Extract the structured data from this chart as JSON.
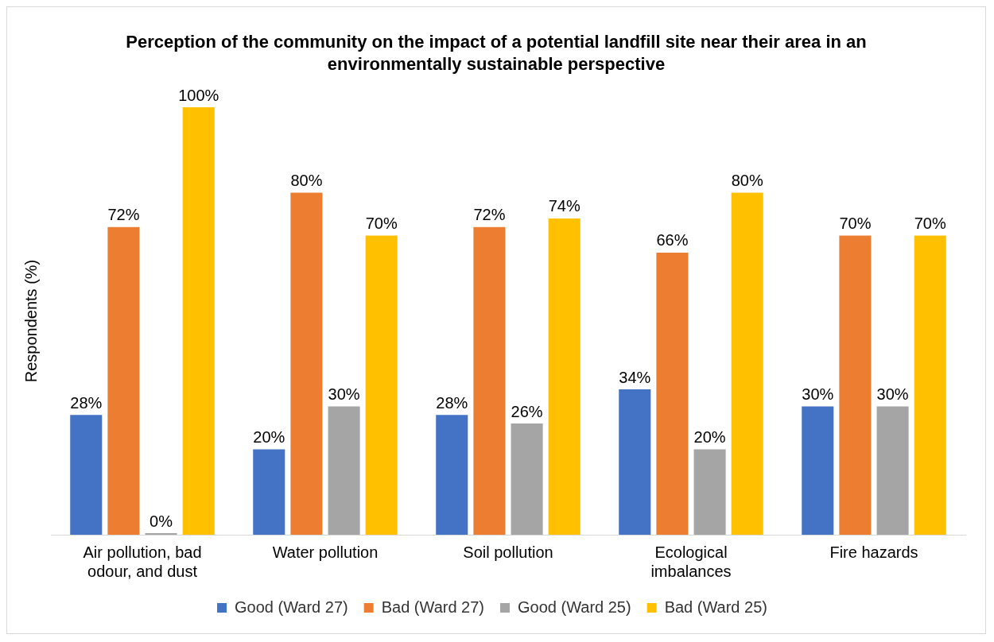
{
  "chart_data": {
    "type": "bar",
    "title": "Perception of the community on the impact of a potential landfill site near their area in an environmentally sustainable perspective",
    "ylabel": "Respondents (%)",
    "categories": [
      "Air pollution, bad odour, and dust",
      "Water pollution",
      "Soil pollution",
      "Ecological imbalances",
      "Fire hazards"
    ],
    "series": [
      {
        "name": "Good (Ward 27)",
        "color": "#4472c4",
        "values": [
          28,
          20,
          28,
          34,
          30
        ],
        "value_labels": [
          "28%",
          "20%",
          "28%",
          "34%",
          "30%"
        ]
      },
      {
        "name": "Bad (Ward 27)",
        "color": "#ed7d31",
        "values": [
          72,
          80,
          72,
          66,
          70
        ],
        "value_labels": [
          "72%",
          "80%",
          "72%",
          "66%",
          "70%"
        ]
      },
      {
        "name": "Good (Ward 25)",
        "color": "#a5a5a5",
        "values": [
          0,
          30,
          26,
          20,
          30
        ],
        "value_labels": [
          "0%",
          "30%",
          "26%",
          "20%",
          "30%"
        ]
      },
      {
        "name": "Bad (Ward 25)",
        "color": "#ffc000",
        "values": [
          100,
          70,
          74,
          80,
          70
        ],
        "value_labels": [
          "100%",
          "70%",
          "74%",
          "80%",
          "70%"
        ]
      }
    ],
    "ylim": [
      0,
      100
    ],
    "grid": false,
    "legend": "bottom"
  }
}
